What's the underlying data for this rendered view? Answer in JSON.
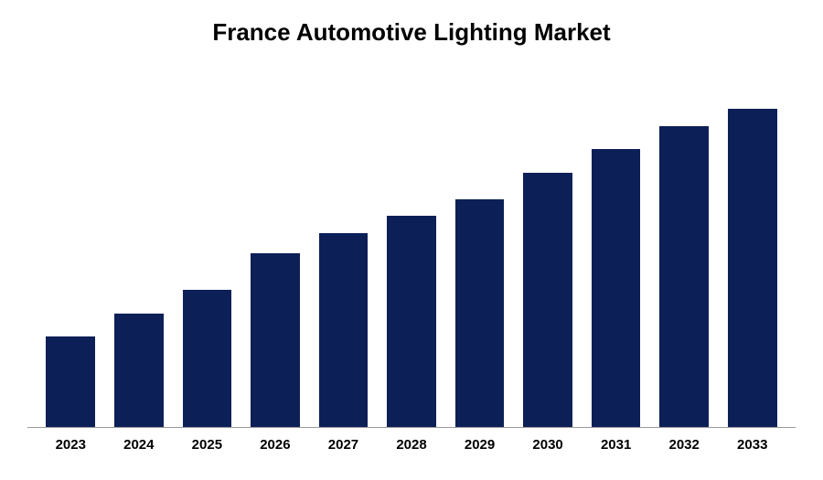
{
  "chart": {
    "type": "bar",
    "title": "France Automotive Lighting Market",
    "title_fontsize": 26,
    "title_color": "#000000",
    "background_color": "#ffffff",
    "bar_color": "#0d1f57",
    "label_fontsize": 15,
    "label_fontweight": "bold",
    "label_color": "#000000",
    "axis_color": "#999999",
    "categories": [
      "2023",
      "2024",
      "2025",
      "2026",
      "2027",
      "2028",
      "2029",
      "2030",
      "2031",
      "2032",
      "2033"
    ],
    "values": [
      27,
      34,
      41,
      52,
      58,
      63,
      68,
      76,
      83,
      90,
      95
    ],
    "ylim": [
      0,
      100
    ],
    "bar_width_pct": 72
  }
}
